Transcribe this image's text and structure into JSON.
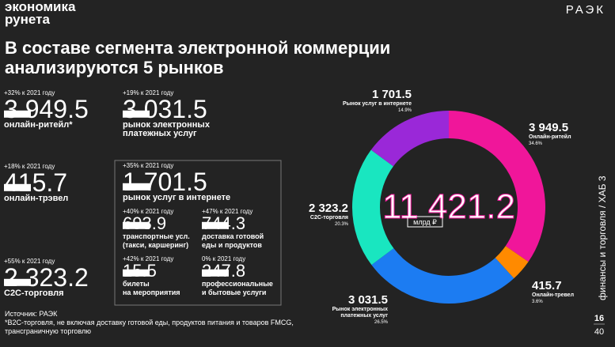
{
  "header": {
    "logo": [
      "экономика",
      "рунета"
    ],
    "brand": "РАЭК",
    "title": [
      "В составе сегмента электронной коммерции",
      "анализируются 5 рынков"
    ]
  },
  "markets": [
    {
      "growth": "+32% к 2021 году",
      "value": "3 949.5",
      "unit": "млрд ₽",
      "label": [
        "онлайн-ритейл*"
      ]
    },
    {
      "growth": "+19% к 2021 году",
      "value": "3 031.5",
      "unit": "млрд ₽",
      "label": [
        "рынок электронных",
        "платежных услуг"
      ]
    },
    {
      "growth": "+18% к 2021 году",
      "value": "415.7",
      "unit": "млрд ₽",
      "label": [
        "онлайн-трэвел"
      ]
    },
    {
      "growth": "+35% к 2021 году",
      "value": "1 701.5",
      "unit": "млрд ₽",
      "label": [
        "рынок услуг в интернете"
      ]
    },
    {
      "growth": "+40% к 2021 году",
      "value": "693.9",
      "unit": "млрд ₽",
      "label": [
        "транспортные усл.",
        "(такси, каршеринг)"
      ]
    },
    {
      "growth": "+47% к 2021 году",
      "value": "744.3",
      "unit": "млрд ₽",
      "label": [
        "доставка готовой",
        "еды и продуктов"
      ]
    },
    {
      "growth": "+42% к 2021 году",
      "value": "15.5",
      "unit": "млрд ₽",
      "label": [
        "билеты",
        "на мероприятия"
      ]
    },
    {
      "growth": "0% к 2021 году",
      "value": "247.8",
      "unit": "млрд ₽",
      "label": [
        "профессиональные",
        "и бытовые услуги"
      ]
    },
    {
      "growth": "+55% к 2021 году",
      "value": "2 323.2",
      "unit": "млрд ₽",
      "label": [
        "C2C-торговля"
      ]
    }
  ],
  "footer": {
    "source": "Источник: РАЭК",
    "note": [
      "*B2C-торговля, не включая доставку готовой еды, продуктов питания и товаров FMCG,",
      "трансграничную торговлю"
    ],
    "section": "финансы и торговля / ХАБ 3",
    "page": "16",
    "pages": "40"
  },
  "chart_data": {
    "type": "donut",
    "center_value": "11 421.2",
    "center_unit": "млрд ₽",
    "categories": [
      "Онлайн-ритейл",
      "Онлайн-тревел",
      [
        "Рынок электронных",
        "платежных услуг"
      ],
      "C2C-торговля",
      "Рынок услуг в интернете"
    ],
    "values": [
      3949.5,
      415.7,
      3031.5,
      2323.2,
      1701.5
    ],
    "value_labels": [
      "3 949.5",
      "415.7",
      "3 031.5",
      "2 323.2",
      "1 701.5"
    ],
    "shares": [
      "34.6%",
      "3.6%",
      "26.5%",
      "20.3%",
      "14.9%"
    ],
    "colors": [
      "#f0169a",
      "#ff8a00",
      "#1c7cf2",
      "#19e6c0",
      "#9a28d8"
    ]
  }
}
